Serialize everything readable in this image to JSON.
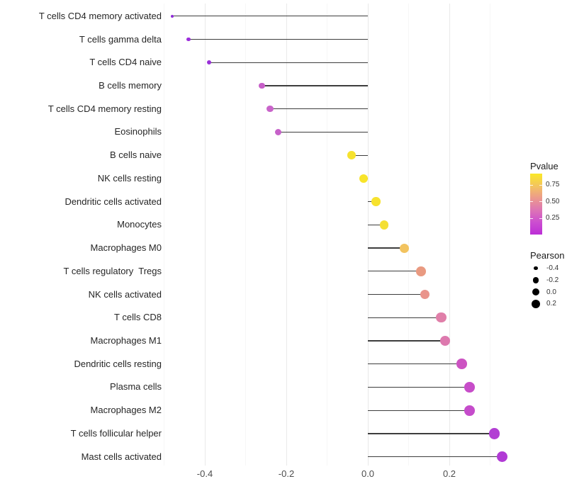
{
  "chart_data": {
    "type": "lollipop",
    "orientation": "horizontal",
    "title": "",
    "xlabel": "",
    "ylabel": "",
    "categories": [
      "T cells CD4 memory activated",
      "T cells gamma delta",
      "T cells CD4 naive",
      "B cells memory",
      "T cells CD4 memory resting",
      "Eosinophils",
      "B cells naive",
      "NK cells resting",
      "Dendritic cells activated",
      "Monocytes",
      "Macrophages M0",
      "T cells regulatory  Tregs",
      "NK cells activated",
      "T cells CD8",
      "Macrophages M1",
      "Dendritic cells resting",
      "Plasma cells",
      "Macrophages M2",
      "T cells follicular helper",
      "Mast cells activated"
    ],
    "series": [
      {
        "name": "Pearson",
        "values": [
          -0.48,
          -0.44,
          -0.39,
          -0.26,
          -0.24,
          -0.22,
          -0.04,
          -0.01,
          0.02,
          0.04,
          0.09,
          0.13,
          0.14,
          0.18,
          0.19,
          0.23,
          0.25,
          0.25,
          0.31,
          0.33
        ]
      }
    ],
    "pvalue_estimated_from_color": [
      0.05,
      0.08,
      0.08,
      0.27,
      0.28,
      0.27,
      0.88,
      0.9,
      0.88,
      0.85,
      0.7,
      0.56,
      0.54,
      0.45,
      0.43,
      0.24,
      0.21,
      0.2,
      0.12,
      0.1
    ],
    "point_colors": [
      "#8F2BD8",
      "#9C2EDC",
      "#9930D8",
      "#C75FC8",
      "#C964CA",
      "#C661C9",
      "#F6E22E",
      "#F8E42A",
      "#F7E22E",
      "#F4DF35",
      "#F2C35F",
      "#E99A81",
      "#E9948C",
      "#E07FA9",
      "#DD79AE",
      "#CC53C2",
      "#C74DC9",
      "#C54CCB",
      "#B23ED3",
      "#B13AD5"
    ],
    "x_ticks": [
      {
        "value": -0.4,
        "label": "-0.4"
      },
      {
        "value": -0.2,
        "label": "-0.2"
      },
      {
        "value": 0.0,
        "label": "0.0"
      },
      {
        "value": 0.2,
        "label": "0.2"
      }
    ],
    "x_range": [
      -0.52,
      0.36
    ],
    "grid": {
      "major": [
        -0.4,
        -0.2,
        0.0,
        0.2
      ],
      "minor": [
        -0.5,
        -0.3,
        -0.1,
        0.1,
        0.3
      ]
    },
    "baseline_value": 0.0,
    "legend_position": "right"
  },
  "legend": {
    "pvalue": {
      "title": "Pvalue",
      "ticks": [
        {
          "value": 0.75,
          "label": "0.75"
        },
        {
          "value": 0.5,
          "label": "0.50"
        },
        {
          "value": 0.25,
          "label": "0.25"
        }
      ],
      "gradient_top_to_bottom": [
        "#FAE826",
        "#F3C55F",
        "#EC9A8C",
        "#DD74B5",
        "#CC4ED0",
        "#BC2ED6"
      ],
      "scale_top_value": 0.92,
      "scale_bottom_value": 0.0
    },
    "pearson": {
      "title": "Pearson",
      "items": [
        {
          "value": -0.4,
          "label": "-0.4"
        },
        {
          "value": -0.2,
          "label": "-0.2"
        },
        {
          "value": 0.0,
          "label": "0.0"
        },
        {
          "value": 0.2,
          "label": "0.2"
        }
      ],
      "dot_color": "#000000"
    }
  },
  "colors": {
    "background": "#ffffff",
    "stem": "#3d3d3d",
    "grid_major": "#e9e9e9",
    "grid_minor": "#f6f6f6",
    "axis_text": "#4d4d4d",
    "category_text": "#262626"
  }
}
